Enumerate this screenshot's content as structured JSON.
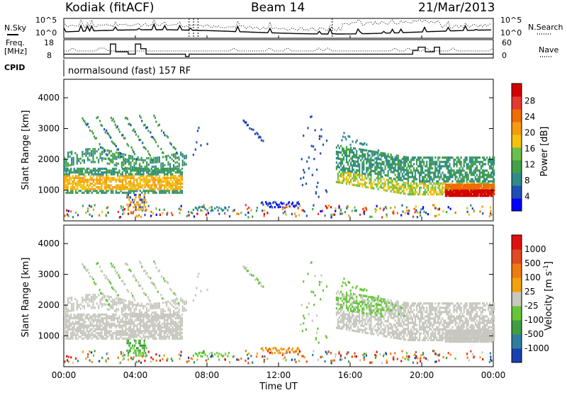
{
  "header": {
    "station": "Kodiak (fitACF)",
    "beam": "Beam 14",
    "date": "21/Mar/2013"
  },
  "top_panels": {
    "nsky_label": "N.Sky",
    "nsearch_label": "N.Search",
    "noise_ticks": [
      "10^5",
      "10^0"
    ],
    "freq_label_1": "Freq.",
    "freq_label_2": "[MHz]",
    "freq_ticks": [
      "18",
      "8"
    ],
    "nave_label": "Nave",
    "nave_ticks": [
      "60",
      "0"
    ],
    "cpid_label": "CPID",
    "cpid_text": "normalsound (fast) 157 RF"
  },
  "chart_data": [
    {
      "type": "heatmap",
      "title": "",
      "xlabel": "",
      "ylabel": "Slant Range [km]",
      "colorbar_label": "Power [dB]",
      "colorbar_ticks": [
        4,
        8,
        12,
        16,
        20,
        24,
        28
      ],
      "colorbar_colors": [
        "#0000ff",
        "#1f4fb4",
        "#2f8a8a",
        "#43a047",
        "#6ac04a",
        "#f4c20d",
        "#f39c12",
        "#ef6c00",
        "#e53935",
        "#d50000"
      ],
      "ylim": [
        0,
        4600
      ],
      "yticks": [
        1000,
        2000,
        3000,
        4000
      ],
      "xlim_hours": [
        0,
        24
      ],
      "grid": false
    },
    {
      "type": "heatmap",
      "title": "",
      "xlabel": "Time UT",
      "ylabel": "Slant Range [km]",
      "colorbar_label": "Velocity [m s-1]",
      "colorbar_ticks": [
        1000,
        500,
        100,
        25,
        -25,
        -100,
        -500,
        -1000
      ],
      "colorbar_colors": [
        "#1a3fb0",
        "#2f7ea0",
        "#3f9e3f",
        "#66c63a",
        "#c8c8c0",
        "#f2a20c",
        "#f07a12",
        "#e04a20",
        "#e01010"
      ],
      "ylim": [
        0,
        4600
      ],
      "yticks": [
        1000,
        2000,
        3000,
        4000
      ],
      "xticks": [
        "00:00",
        "04:00",
        "08:00",
        "12:00",
        "16:00",
        "20:00",
        "00:00"
      ],
      "xlim_hours": [
        0,
        24
      ],
      "grid": false
    }
  ],
  "labels": {
    "power_units": "Power [dB]",
    "velocity_units": "Velocity [m s",
    "velocity_sup": "-1",
    "velocity_close": "]",
    "slant_range": "Slant Range [km]",
    "time_ut": "Time UT"
  }
}
